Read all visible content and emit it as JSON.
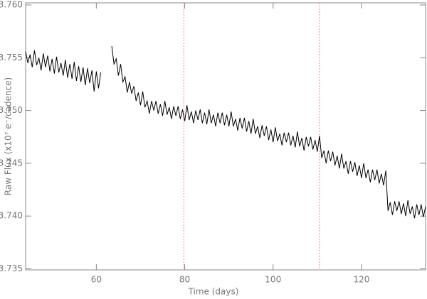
{
  "chart_data": {
    "type": "line",
    "x_label": "Time (days)",
    "y_label": "Raw Flux (x10⁷ e⁻/cadence)",
    "color": "#000000",
    "axis_color": "#888888",
    "vline_color": "#f08080",
    "vlines": [
      79.8,
      110.5
    ],
    "xlim": [
      44,
      134.5
    ],
    "ylim": [
      3.7349,
      3.7602
    ],
    "xticks": [
      60,
      80,
      100,
      120
    ],
    "yticks": [
      {
        "value": 3.735,
        "label": "3.735"
      },
      {
        "value": 3.74,
        "label": "3.740"
      },
      {
        "value": 3.745,
        "label": "3.745"
      },
      {
        "value": 3.75,
        "label": "3.750"
      },
      {
        "value": 3.755,
        "label": "3.755"
      },
      {
        "value": 3.76,
        "label": "3.760"
      }
    ],
    "x": [
      44.0,
      44.5,
      45.0,
      45.5,
      46.0,
      46.5,
      47.0,
      47.5,
      48.0,
      48.5,
      49.0,
      49.5,
      50.0,
      50.5,
      51.0,
      51.5,
      52.0,
      52.5,
      53.0,
      53.5,
      54.0,
      54.5,
      55.0,
      55.5,
      56.0,
      56.5,
      57.0,
      57.5,
      58.0,
      58.5,
      59.0,
      59.5,
      60.0,
      60.5,
      61.0,
      62.0,
      63.5,
      64.0,
      64.5,
      65.0,
      65.5,
      66.0,
      66.5,
      67.0,
      67.5,
      68.0,
      68.5,
      69.0,
      69.5,
      70.0,
      70.5,
      71.0,
      71.5,
      72.0,
      72.5,
      73.0,
      73.5,
      74.0,
      74.5,
      75.0,
      75.5,
      76.0,
      76.5,
      77.0,
      77.5,
      78.0,
      78.5,
      79.0,
      79.5,
      80.0,
      80.5,
      81.0,
      81.5,
      82.0,
      82.5,
      83.0,
      83.5,
      84.0,
      84.5,
      85.0,
      85.5,
      86.0,
      86.5,
      87.0,
      87.5,
      88.0,
      88.5,
      89.0,
      89.5,
      90.0,
      90.5,
      91.0,
      91.5,
      92.0,
      92.5,
      93.0,
      93.5,
      94.0,
      94.5,
      95.0,
      95.5,
      96.0,
      96.5,
      97.0,
      97.5,
      98.0,
      98.5,
      99.0,
      99.5,
      100.0,
      100.5,
      101.0,
      101.5,
      102.0,
      102.5,
      103.0,
      103.5,
      104.0,
      104.5,
      105.0,
      105.5,
      106.0,
      106.5,
      107.0,
      107.5,
      108.0,
      108.5,
      109.0,
      109.5,
      110.0,
      110.5,
      111.0,
      111.5,
      112.0,
      112.5,
      113.0,
      113.5,
      114.0,
      114.5,
      115.0,
      115.5,
      116.0,
      116.5,
      117.0,
      117.5,
      118.0,
      118.5,
      119.0,
      119.5,
      120.0,
      120.5,
      121.0,
      121.5,
      122.0,
      122.5,
      123.0,
      123.5,
      124.0,
      124.5,
      125.0,
      125.5,
      126.0,
      126.5,
      127.0,
      127.5,
      128.0,
      128.5,
      129.0,
      129.5,
      130.0,
      130.5,
      131.0,
      131.5,
      132.0,
      132.5,
      133.0,
      133.5,
      134.0,
      134.5
    ],
    "values": [
      3.7556,
      3.7545,
      3.7553,
      3.7541,
      3.7557,
      3.7543,
      3.755,
      3.7538,
      3.7554,
      3.7541,
      3.7552,
      3.7537,
      3.7549,
      3.7535,
      3.7551,
      3.7536,
      3.7545,
      3.7533,
      3.7548,
      3.7531,
      3.7544,
      3.753,
      3.7546,
      3.7528,
      3.7542,
      3.7527,
      3.7541,
      3.7524,
      3.754,
      3.7526,
      3.7538,
      3.7518,
      3.7537,
      3.7521,
      3.7536,
      null,
      3.7561,
      3.7544,
      3.7549,
      3.7533,
      3.7544,
      3.7527,
      3.7532,
      3.7517,
      3.7527,
      3.7516,
      3.7523,
      3.7509,
      3.7517,
      3.7505,
      3.7518,
      3.7503,
      3.7509,
      3.7497,
      3.7509,
      3.75,
      3.7509,
      3.7497,
      3.7506,
      3.7495,
      3.7509,
      3.7496,
      3.7503,
      3.7492,
      3.7504,
      3.7495,
      3.7504,
      3.7492,
      3.7501,
      3.749,
      3.7505,
      3.7491,
      3.7499,
      3.7488,
      3.75,
      3.7491,
      3.7501,
      3.7488,
      3.7498,
      3.7487,
      3.7501,
      3.7488,
      3.7496,
      3.7485,
      3.7498,
      3.7488,
      3.7498,
      3.7486,
      3.7496,
      3.7485,
      3.7499,
      3.7485,
      3.7492,
      3.7481,
      3.7493,
      3.7483,
      3.7493,
      3.748,
      3.749,
      3.7478,
      3.7492,
      3.7478,
      3.7485,
      3.7474,
      3.7486,
      3.7476,
      3.7485,
      3.7472,
      3.7482,
      3.747,
      3.7484,
      3.7471,
      3.7478,
      3.7467,
      3.7479,
      3.747,
      3.7479,
      3.7467,
      3.7476,
      3.7465,
      3.748,
      3.7466,
      3.7474,
      3.7462,
      3.7475,
      3.7466,
      3.7475,
      3.7463,
      3.7472,
      3.7461,
      3.7476,
      3.7455,
      3.7462,
      3.745,
      3.7462,
      3.7452,
      3.7461,
      3.7448,
      3.7457,
      3.7445,
      3.7459,
      3.7445,
      3.7452,
      3.744,
      3.7452,
      3.7442,
      3.7451,
      3.7438,
      3.7448,
      3.7436,
      3.745,
      3.7436,
      3.7444,
      3.7432,
      3.7444,
      3.7434,
      3.7444,
      3.7431,
      3.744,
      3.7429,
      3.7443,
      3.7405,
      3.7413,
      3.7401,
      3.7414,
      3.7405,
      3.7414,
      3.7402,
      3.7412,
      3.74,
      3.7415,
      3.7402,
      3.7409,
      3.7398,
      3.7411,
      3.7401,
      3.7411,
      3.7399,
      3.7409
    ]
  }
}
